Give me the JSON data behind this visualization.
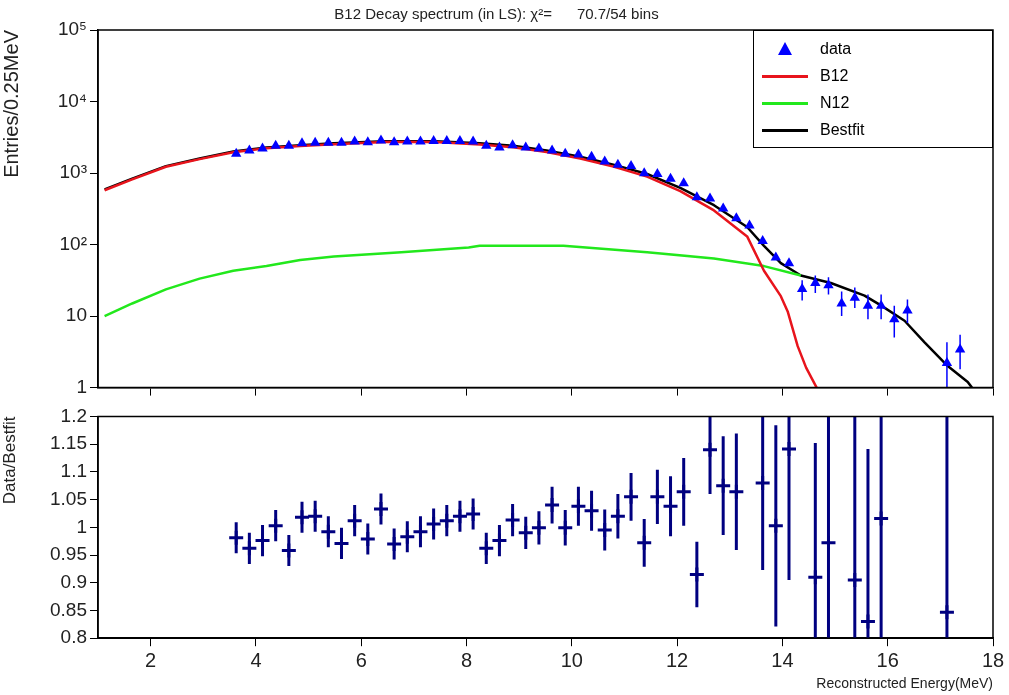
{
  "chart_data": [
    {
      "type": "line",
      "title": "B12 Decay spectrum (in LS): χ²=      70.7/54 bins",
      "ylabel": "Entries/0.25MeV",
      "log": "y",
      "grid": false,
      "legend": "top right",
      "tick_labels": "y",
      "xlim": [
        1,
        18
      ],
      "xticks": [
        2,
        4,
        6,
        8,
        10,
        12,
        14,
        16,
        18
      ],
      "ylim": [
        1,
        100000
      ],
      "yticks": [
        {
          "value": 1,
          "label": "1"
        },
        {
          "value": 10,
          "label": "10"
        },
        {
          "value": 100,
          "label": "10²"
        },
        {
          "value": 1000,
          "label": "10³"
        },
        {
          "value": 10000,
          "label": "10⁴"
        },
        {
          "value": 100000,
          "label": "10⁵"
        }
      ],
      "series": [
        {
          "name": "data",
          "type": "scatter",
          "marker": "triangle",
          "color": "#0000ff",
          "x": [
            3.625,
            3.875,
            4.125,
            4.375,
            4.625,
            4.875,
            5.125,
            5.375,
            5.625,
            5.875,
            6.125,
            6.375,
            6.625,
            6.875,
            7.125,
            7.375,
            7.625,
            7.875,
            8.125,
            8.375,
            8.625,
            8.875,
            9.125,
            9.375,
            9.625,
            9.875,
            10.125,
            10.375,
            10.625,
            10.875,
            11.125,
            11.375,
            11.625,
            11.875,
            12.125,
            12.375,
            12.625,
            12.875,
            13.125,
            13.375,
            13.625,
            13.875,
            14.125,
            14.375,
            14.625,
            14.875,
            15.125,
            15.375,
            15.625,
            15.875,
            16.125,
            16.375,
            17.125,
            17.375
          ],
          "values": [
            1860,
            2060,
            2210,
            2400,
            2400,
            2600,
            2650,
            2650,
            2650,
            2750,
            2700,
            2850,
            2700,
            2750,
            2750,
            2800,
            2800,
            2800,
            2750,
            2400,
            2280,
            2450,
            2280,
            2210,
            2060,
            1860,
            1810,
            1690,
            1450,
            1310,
            1250,
            990,
            970,
            830,
            720,
            460,
            440,
            320,
            233,
            185,
            112,
            66,
            55,
            24,
            29,
            27,
            15,
            18,
            14,
            14,
            9,
            12,
            2.2,
            3.4
          ],
          "errors": [
            null,
            null,
            null,
            null,
            null,
            null,
            null,
            null,
            null,
            null,
            null,
            null,
            null,
            null,
            null,
            null,
            null,
            null,
            null,
            null,
            null,
            null,
            null,
            null,
            null,
            null,
            null,
            null,
            null,
            null,
            null,
            null,
            null,
            null,
            null,
            null,
            null,
            null,
            null,
            null,
            null,
            null,
            null,
            [
              16.5,
              31.6
            ],
            [
              21,
              37
            ],
            [
              20,
              35
            ],
            [
              10,
              22
            ],
            [
              13,
              25
            ],
            [
              9,
              20
            ],
            [
              9,
              20
            ],
            [
              5,
              14
            ],
            [
              8,
              17
            ],
            [
              1,
              4.3
            ],
            [
              1.8,
              5.5
            ]
          ]
        },
        {
          "name": "B12",
          "type": "line",
          "color": "#e8141c",
          "x": [
            1.125,
            1.65,
            2.29,
            2.93,
            3.57,
            4.2,
            4.84,
            5.48,
            6.44,
            7.4,
            8.25,
            8.89,
            9.52,
            10.16,
            10.79,
            11.43,
            12.06,
            12.7,
            13.33,
            13.65,
            13.97,
            14.1,
            14.29,
            14.45,
            14.65
          ],
          "values": [
            575,
            815,
            1225,
            1565,
            1955,
            2230,
            2390,
            2530,
            2715,
            2710,
            2500,
            2300,
            1960,
            1600,
            1230,
            890,
            560,
            300,
            130,
            43,
            19,
            11.6,
            3.8,
            1.9,
            1
          ]
        },
        {
          "name": "N12",
          "type": "line",
          "color": "#22e81c",
          "x": [
            1.125,
            1.65,
            2.29,
            2.93,
            3.57,
            4.2,
            4.84,
            5.48,
            6.76,
            8.04,
            8.25,
            9.84,
            11.43,
            12.7,
            13.65,
            14.35
          ],
          "values": [
            10,
            15,
            23.6,
            33.4,
            43,
            50,
            61,
            68,
            78,
            91,
            96,
            96,
            78,
            64,
            50,
            37
          ]
        },
        {
          "name": "Bestfit",
          "type": "line",
          "color": "#000000",
          "x": [
            1.125,
            1.65,
            2.29,
            2.93,
            3.57,
            4.2,
            4.84,
            5.48,
            6.44,
            7.4,
            8.25,
            8.89,
            9.52,
            10.16,
            10.79,
            11.43,
            12.06,
            12.7,
            13.33,
            13.65,
            13.97,
            14.35,
            14.92,
            15.56,
            15.87,
            16.32,
            16.7,
            17.14,
            17.52,
            17.6
          ],
          "values": [
            590,
            834,
            1250,
            1600,
            2000,
            2280,
            2450,
            2600,
            2790,
            2790,
            2600,
            2400,
            2060,
            1690,
            1310,
            970,
            620,
            355,
            176,
            96,
            55,
            37,
            29,
            19.3,
            14.1,
            8.6,
            4.3,
            2,
            1.2,
            1
          ]
        }
      ]
    },
    {
      "type": "scatter",
      "ylabel": "Data/Bestfit",
      "xlabel": "Reconstructed Energy(MeV)",
      "grid": false,
      "marker": "cross",
      "xlim": [
        1,
        18
      ],
      "xticks": [
        2,
        4,
        6,
        8,
        10,
        12,
        14,
        16,
        18
      ],
      "ylim": [
        0.8,
        1.2
      ],
      "yticks": [
        0.8,
        0.85,
        0.9,
        0.95,
        1,
        1.05,
        1.1,
        1.15,
        1.2
      ],
      "series": [
        {
          "color": "#000080",
          "x": [
            3.625,
            3.875,
            4.125,
            4.375,
            4.625,
            4.875,
            5.125,
            5.375,
            5.625,
            5.875,
            6.125,
            6.375,
            6.625,
            6.875,
            7.125,
            7.375,
            7.625,
            7.875,
            8.125,
            8.375,
            8.625,
            8.875,
            9.125,
            9.375,
            9.625,
            9.875,
            10.125,
            10.375,
            10.625,
            10.875,
            11.125,
            11.375,
            11.625,
            11.875,
            12.125,
            12.375,
            12.625,
            12.875,
            13.125,
            13.625,
            13.875,
            14.125,
            14.625,
            14.875,
            15.375,
            15.625,
            15.875,
            17.125
          ],
          "values": [
            0.981,
            0.962,
            0.976,
            1.003,
            0.958,
            1.018,
            1.02,
            0.992,
            0.971,
            1.012,
            0.979,
            1.033,
            0.97,
            0.983,
            0.992,
            1.006,
            1.012,
            1.02,
            1.024,
            0.962,
            0.976,
            1.013,
            0.99,
            0.999,
            1.04,
            0.999,
            1.038,
            1.03,
            0.995,
            1.02,
            1.055,
            0.972,
            1.055,
            1.038,
            1.064,
            0.915,
            1.14,
            1.075,
            1.064,
            1.08,
            1.003,
            1.141,
            0.91,
            0.972,
            0.905,
            0.83,
            1.016,
            0.847
          ],
          "errors": [
            0.028,
            0.028,
            0.028,
            0.028,
            0.028,
            0.028,
            0.028,
            0.028,
            0.028,
            0.028,
            0.028,
            0.028,
            0.028,
            0.028,
            0.028,
            0.028,
            0.028,
            0.028,
            0.028,
            0.028,
            0.028,
            0.029,
            0.029,
            0.03,
            0.033,
            0.032,
            0.035,
            0.036,
            0.037,
            0.04,
            0.043,
            0.043,
            0.049,
            0.054,
            0.061,
            0.059,
            [
              1.06,
              1.2
            ],
            [
              0.986,
              1.164
            ],
            [
              0.959,
              1.169
            ],
            [
              0.923,
              1.2
            ],
            [
              0.821,
              1.184
            ],
            [
              0.905,
              1.2
            ],
            [
              0.8,
              1.152
            ],
            [
              0.8,
              1.2
            ],
            [
              0.8,
              1.2
            ],
            [
              0.8,
              1.141
            ],
            [
              0.8,
              1.2
            ],
            [
              0.8,
              1.2
            ]
          ]
        }
      ]
    }
  ]
}
